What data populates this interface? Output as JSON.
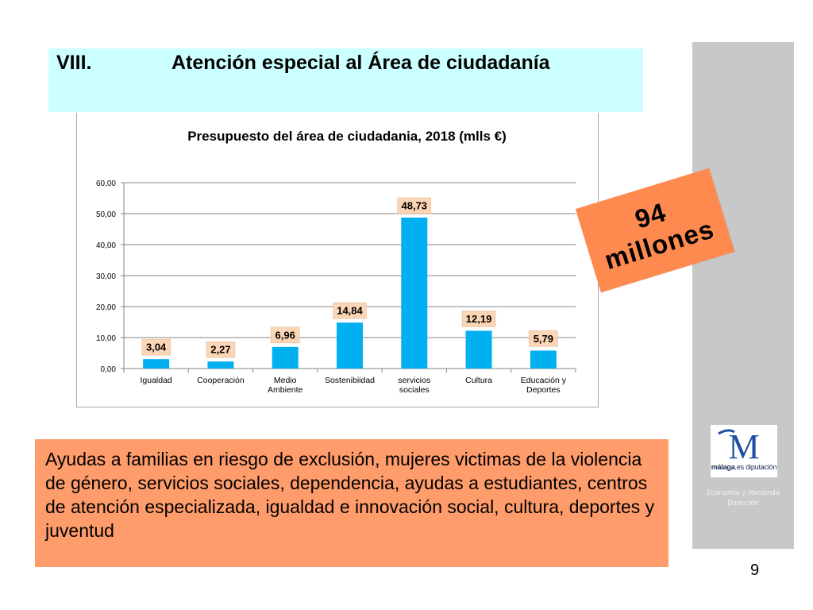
{
  "slide": {
    "section_number": "VIII.",
    "title": "Atención especial al Área de ciudadanía",
    "page_number": "9"
  },
  "badge": {
    "line1": "94",
    "line2": "millones"
  },
  "note": {
    "text": "Ayudas a familias en riesgo de exclusión, mujeres victimas de la violencia de género, servicios sociales, dependencia, ayudas a estudiantes, centros de atención especializada, igualdad e innovación social, cultura, deportes y juventud"
  },
  "sidebar": {
    "logo_name_bold": "málaga",
    "logo_name_rest": ".es diputación",
    "logo_letter": "M",
    "dept_line1": "Economía y Hacienda",
    "dept_line2": "Dirección"
  },
  "colors": {
    "bar": "#00b0f0",
    "label_bg": "#fcd5b4",
    "badge": "#ff8a50",
    "note_bg": "#ff9c6b",
    "title_bg": "#ccffff"
  },
  "chart_data": {
    "type": "bar",
    "title": "Presupuesto del área de ciudadania, 2018 (mlls €)",
    "categories": [
      [
        "Igualdad"
      ],
      [
        "Cooperación"
      ],
      [
        "Medio",
        "Ambiente"
      ],
      [
        "Sostenibiidad"
      ],
      [
        "servicios",
        "sociales"
      ],
      [
        "Cultura"
      ],
      [
        "Educación y",
        "Deportes"
      ]
    ],
    "values": [
      3.04,
      2.27,
      6.96,
      14.84,
      48.73,
      12.19,
      5.79
    ],
    "data_labels": [
      "3,04",
      "2,27",
      "6,96",
      "14,84",
      "48,73",
      "12,19",
      "5,79"
    ],
    "yticks": [
      "0,00",
      "10,00",
      "20,00",
      "30,00",
      "40,00",
      "50,00",
      "60,00"
    ],
    "ylim": [
      0,
      60
    ],
    "grid": true,
    "legend": "none"
  }
}
